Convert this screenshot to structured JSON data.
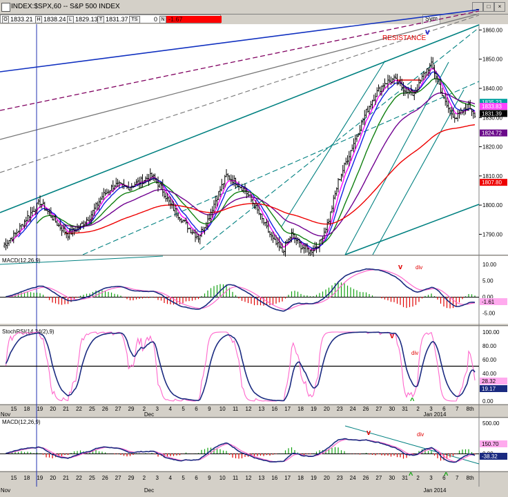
{
  "window": {
    "title": "INDEX:$SPX,60 -- S&P 500 INDEX"
  },
  "ohlc_bar": {
    "o_label": "O",
    "o_val": "1833.21",
    "h_label": "H",
    "h_val": "1838.24",
    "l_label": "L",
    "l_val": "1829.13",
    "t_label": "T",
    "t_val": "1831.37",
    "ts_label": "TS",
    "ts_val": "0",
    "n_label": "N",
    "n_val": "-1.67"
  },
  "toolbar": {
    "sym_label": "Sym"
  },
  "price_axis": {
    "ticks": [
      "1860.00",
      "1850.00",
      "1840.00",
      "1830.00",
      "1820.00",
      "1810.00",
      "1800.00",
      "1790.00"
    ]
  },
  "price_badges": [
    {
      "text": "1835.23",
      "color": "#00a0a0"
    },
    {
      "text": "1833.83",
      "color": "#ff44ff"
    },
    {
      "text": "1831.39",
      "color": "#000000"
    },
    {
      "text": "1824.72",
      "color": "#6a0a8a"
    },
    {
      "text": "1807.80",
      "color": "#ee0000"
    }
  ],
  "annotations": {
    "resistance": "RESISTANCE",
    "v_top": "v",
    "macd1_v": "v",
    "macd1_div": "div",
    "stoch_v": "v",
    "stoch_div": "div",
    "stoch_caret": "^",
    "macd2_v": "v",
    "macd2_div": "div",
    "macd2_caret1": "^",
    "macd2_caret2": "^"
  },
  "macd1": {
    "label": "MACD(12,26,9)",
    "ticks": [
      "10.00",
      "5.00",
      "0.00",
      "-5.00"
    ],
    "badge": "-1.61"
  },
  "stochrsi": {
    "label": "StochRSI(14,34(2),9)",
    "ticks": [
      "100.00",
      "80.00",
      "60.00",
      "40.00",
      "20.00",
      "0.00"
    ],
    "badge1": "28.32",
    "badge2": "19.17"
  },
  "macd2": {
    "label": "MACD(12,26,9)",
    "ticks": [
      "500.00",
      "0.00",
      "-500.00"
    ],
    "badge1": "150.70",
    "badge2": "-38.32"
  },
  "date_axis": {
    "labels": [
      "15",
      "18",
      "19",
      "20",
      "21",
      "22",
      "25",
      "26",
      "27",
      "29",
      "2",
      "3",
      "4",
      "5",
      "6",
      "9",
      "10",
      "11",
      "12",
      "13",
      "16",
      "17",
      "18",
      "19",
      "20",
      "23",
      "24",
      "26",
      "27",
      "30",
      "31",
      "2",
      "3",
      "6",
      "7",
      "8th"
    ],
    "months": [
      "Nov",
      "Dec",
      "Jan 2014"
    ]
  },
  "chart_data": {
    "type": "candlestick",
    "symbol": "INDEX:$SPX",
    "interval": "60",
    "ylim": [
      1783,
      1862
    ],
    "close_path": [
      [
        0,
        1786
      ],
      [
        8,
        1790
      ],
      [
        16,
        1796
      ],
      [
        24,
        1801
      ],
      [
        30,
        1797
      ],
      [
        36,
        1793
      ],
      [
        42,
        1790
      ],
      [
        48,
        1792
      ],
      [
        56,
        1796
      ],
      [
        64,
        1803
      ],
      [
        72,
        1807
      ],
      [
        80,
        1806
      ],
      [
        88,
        1808
      ],
      [
        96,
        1810
      ],
      [
        102,
        1806
      ],
      [
        108,
        1800
      ],
      [
        114,
        1796
      ],
      [
        120,
        1792
      ],
      [
        126,
        1789
      ],
      [
        132,
        1795
      ],
      [
        138,
        1803
      ],
      [
        144,
        1810
      ],
      [
        150,
        1808
      ],
      [
        156,
        1805
      ],
      [
        162,
        1800
      ],
      [
        168,
        1794
      ],
      [
        174,
        1788
      ],
      [
        180,
        1784
      ],
      [
        186,
        1790
      ],
      [
        192,
        1786
      ],
      [
        198,
        1784
      ],
      [
        204,
        1787
      ],
      [
        210,
        1795
      ],
      [
        216,
        1808
      ],
      [
        222,
        1816
      ],
      [
        228,
        1824
      ],
      [
        234,
        1832
      ],
      [
        240,
        1838
      ],
      [
        246,
        1842
      ],
      [
        252,
        1843
      ],
      [
        258,
        1840
      ],
      [
        264,
        1838
      ],
      [
        268,
        1841
      ],
      [
        272,
        1846
      ],
      [
        276,
        1848
      ],
      [
        280,
        1843
      ],
      [
        284,
        1836
      ],
      [
        288,
        1832
      ],
      [
        292,
        1830
      ],
      [
        296,
        1832
      ],
      [
        300,
        1834
      ],
      [
        304,
        1831.4
      ]
    ]
  }
}
